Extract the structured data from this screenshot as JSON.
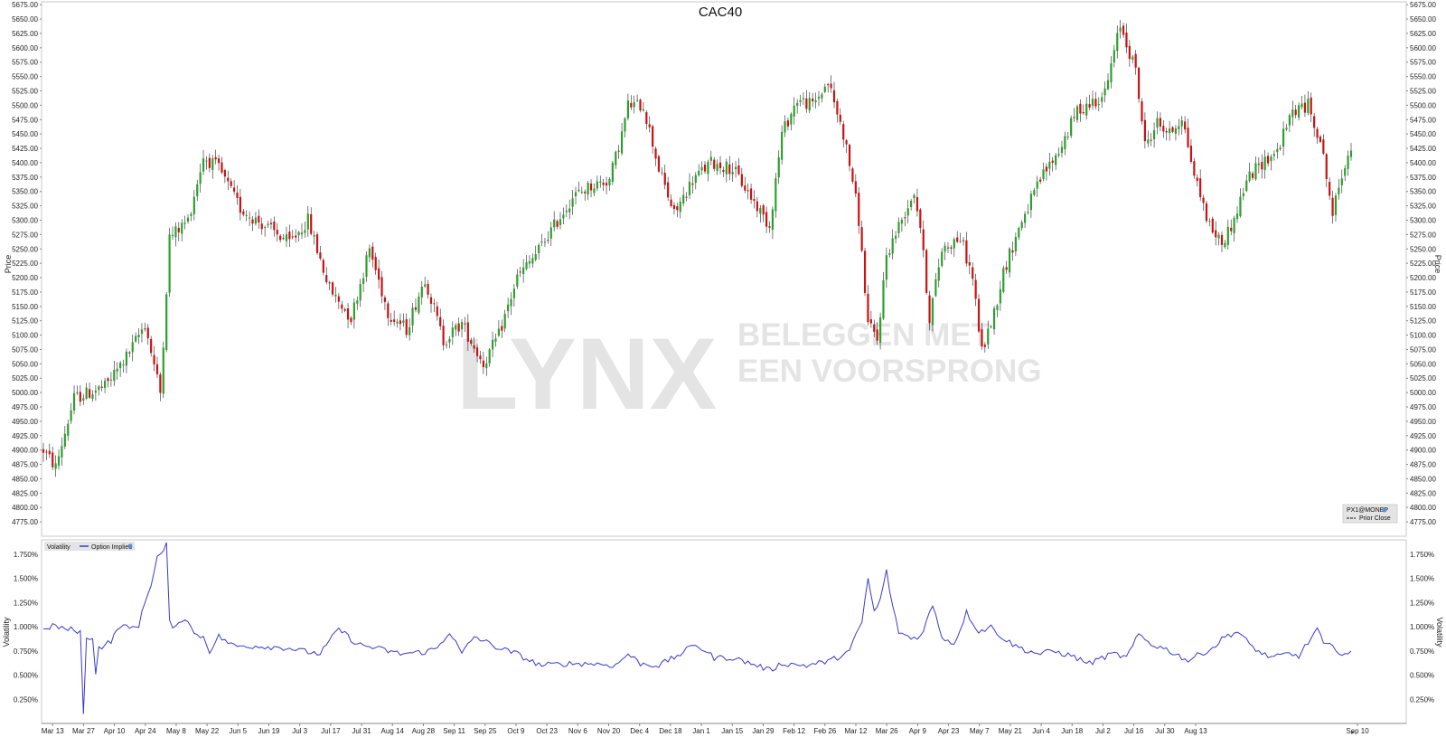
{
  "chart_data": [
    {
      "type": "candlestick",
      "title": "CAC40",
      "ylabel": "Price",
      "ylim": [
        4750,
        5680
      ],
      "y_ticks": [
        "4775.00",
        "4800.00",
        "4825.00",
        "4850.00",
        "4875.00",
        "4900.00",
        "4925.00",
        "4950.00",
        "4975.00",
        "5000.00",
        "5025.00",
        "5050.00",
        "5075.00",
        "5100.00",
        "5125.00",
        "5150.00",
        "5175.00",
        "5200.00",
        "5225.00",
        "5250.00",
        "5275.00",
        "5300.00",
        "5325.00",
        "5350.00",
        "5375.00",
        "5400.00",
        "5425.00",
        "5450.00",
        "5475.00",
        "5500.00",
        "5525.00",
        "5550.00",
        "5575.00",
        "5600.00",
        "5625.00",
        "5650.00",
        "5675.00"
      ],
      "x_ticks": [
        "Mar 13",
        "Mar 27",
        "Apr 10",
        "Apr 24",
        "May 8",
        "May 22",
        "Jun 5",
        "Jun 19",
        "Jul 3",
        "Jul 17",
        "Jul 31",
        "Aug 14",
        "Aug 28",
        "Sep 11",
        "Sep 25",
        "Oct 9",
        "Oct 23",
        "Nov 6",
        "Nov 20",
        "Dec 4",
        "Dec 18",
        "Jan 1",
        "Jan 15",
        "Jan 29",
        "Feb 12",
        "Feb 26",
        "Mar 12",
        "Mar 26",
        "Apr 9",
        "Apr 23",
        "May 7",
        "May 21",
        "Jun 4",
        "Jun 18",
        "Jul 2",
        "Jul 16",
        "Jul 30",
        "Aug 13",
        "Sep 10"
      ],
      "legend": [
        "PX1@MONEP",
        "Prior Close"
      ],
      "legend_position": "bottom-right",
      "colors": {
        "up": "#2ca02c",
        "down": "#cc1111",
        "wick": "#222222"
      },
      "trend_anchors": [
        [
          0,
          4900
        ],
        [
          4,
          4870
        ],
        [
          10,
          4990
        ],
        [
          20,
          5010
        ],
        [
          28,
          5070
        ],
        [
          33,
          5120
        ],
        [
          38,
          5000
        ],
        [
          41,
          5270
        ],
        [
          47,
          5300
        ],
        [
          52,
          5410
        ],
        [
          57,
          5390
        ],
        [
          64,
          5320
        ],
        [
          72,
          5290
        ],
        [
          80,
          5260
        ],
        [
          86,
          5300
        ],
        [
          93,
          5180
        ],
        [
          100,
          5130
        ],
        [
          106,
          5250
        ],
        [
          112,
          5140
        ],
        [
          118,
          5110
        ],
        [
          124,
          5200
        ],
        [
          130,
          5090
        ],
        [
          136,
          5120
        ],
        [
          143,
          5050
        ],
        [
          148,
          5100
        ],
        [
          154,
          5200
        ],
        [
          160,
          5240
        ],
        [
          166,
          5290
        ],
        [
          172,
          5340
        ],
        [
          178,
          5360
        ],
        [
          184,
          5370
        ],
        [
          188,
          5450
        ],
        [
          190,
          5500
        ],
        [
          195,
          5500
        ],
        [
          200,
          5390
        ],
        [
          205,
          5310
        ],
        [
          211,
          5370
        ],
        [
          217,
          5400
        ],
        [
          224,
          5390
        ],
        [
          230,
          5340
        ],
        [
          236,
          5290
        ],
        [
          240,
          5450
        ],
        [
          245,
          5510
        ],
        [
          250,
          5500
        ],
        [
          255,
          5540
        ],
        [
          260,
          5450
        ],
        [
          263,
          5370
        ],
        [
          265,
          5300
        ],
        [
          268,
          5120
        ],
        [
          271,
          5090
        ],
        [
          274,
          5240
        ],
        [
          278,
          5290
        ],
        [
          283,
          5350
        ],
        [
          285,
          5290
        ],
        [
          288,
          5130
        ],
        [
          292,
          5250
        ],
        [
          298,
          5270
        ],
        [
          302,
          5200
        ],
        [
          305,
          5070
        ],
        [
          309,
          5140
        ],
        [
          312,
          5210
        ],
        [
          318,
          5300
        ],
        [
          325,
          5380
        ],
        [
          330,
          5420
        ],
        [
          336,
          5490
        ],
        [
          345,
          5520
        ],
        [
          350,
          5640
        ],
        [
          355,
          5560
        ],
        [
          358,
          5430
        ],
        [
          362,
          5470
        ],
        [
          366,
          5450
        ],
        [
          370,
          5480
        ],
        [
          374,
          5380
        ],
        [
          379,
          5290
        ],
        [
          383,
          5260
        ],
        [
          387,
          5300
        ],
        [
          391,
          5370
        ],
        [
          396,
          5400
        ],
        [
          401,
          5420
        ],
        [
          406,
          5490
        ],
        [
          411,
          5500
        ],
        [
          415,
          5440
        ],
        [
          419,
          5310
        ],
        [
          423,
          5400
        ],
        [
          425,
          5430
        ]
      ]
    },
    {
      "type": "line",
      "legend_title": "Volatility",
      "series": [
        {
          "name": "Option Implied",
          "color": "#3a3acc"
        }
      ],
      "ylabel": "Volatility",
      "ylim": [
        0.0,
        1.9
      ],
      "y_ticks": [
        "0.250%",
        "0.500%",
        "0.750%",
        "1.000%",
        "1.250%",
        "1.500%",
        "1.750%"
      ],
      "values": [
        [
          0,
          0.95
        ],
        [
          3,
          1.02
        ],
        [
          6,
          0.98
        ],
        [
          10,
          0.97
        ],
        [
          12,
          0.95
        ],
        [
          13,
          0.08
        ],
        [
          14,
          0.88
        ],
        [
          16,
          0.9
        ],
        [
          17,
          0.52
        ],
        [
          18,
          0.78
        ],
        [
          22,
          0.85
        ],
        [
          25,
          1.02
        ],
        [
          28,
          0.98
        ],
        [
          31,
          1.02
        ],
        [
          33,
          1.25
        ],
        [
          35,
          1.45
        ],
        [
          37,
          1.72
        ],
        [
          39,
          1.78
        ],
        [
          40,
          1.85
        ],
        [
          41,
          1.05
        ],
        [
          43,
          0.98
        ],
        [
          45,
          1.08
        ],
        [
          47,
          1.08
        ],
        [
          49,
          0.92
        ],
        [
          52,
          0.9
        ],
        [
          54,
          0.75
        ],
        [
          57,
          0.9
        ],
        [
          62,
          0.8
        ],
        [
          70,
          0.8
        ],
        [
          80,
          0.78
        ],
        [
          84,
          0.75
        ],
        [
          90,
          0.72
        ],
        [
          96,
          0.98
        ],
        [
          102,
          0.82
        ],
        [
          108,
          0.78
        ],
        [
          116,
          0.72
        ],
        [
          124,
          0.74
        ],
        [
          128,
          0.78
        ],
        [
          132,
          0.95
        ],
        [
          136,
          0.72
        ],
        [
          140,
          0.9
        ],
        [
          148,
          0.78
        ],
        [
          154,
          0.72
        ],
        [
          158,
          0.65
        ],
        [
          162,
          0.6
        ],
        [
          170,
          0.62
        ],
        [
          178,
          0.62
        ],
        [
          186,
          0.6
        ],
        [
          190,
          0.72
        ],
        [
          194,
          0.62
        ],
        [
          200,
          0.6
        ],
        [
          206,
          0.7
        ],
        [
          212,
          0.82
        ],
        [
          218,
          0.68
        ],
        [
          224,
          0.68
        ],
        [
          232,
          0.6
        ],
        [
          236,
          0.55
        ],
        [
          240,
          0.62
        ],
        [
          248,
          0.6
        ],
        [
          256,
          0.65
        ],
        [
          262,
          0.75
        ],
        [
          266,
          1.05
        ],
        [
          268,
          1.5
        ],
        [
          270,
          1.15
        ],
        [
          272,
          1.28
        ],
        [
          274,
          1.58
        ],
        [
          276,
          1.2
        ],
        [
          278,
          0.95
        ],
        [
          282,
          0.88
        ],
        [
          285,
          0.9
        ],
        [
          289,
          1.22
        ],
        [
          292,
          0.9
        ],
        [
          296,
          0.82
        ],
        [
          300,
          1.15
        ],
        [
          304,
          0.95
        ],
        [
          308,
          1.0
        ],
        [
          312,
          0.88
        ],
        [
          316,
          0.8
        ],
        [
          320,
          0.75
        ],
        [
          324,
          0.72
        ],
        [
          328,
          0.75
        ],
        [
          334,
          0.7
        ],
        [
          340,
          0.62
        ],
        [
          344,
          0.68
        ],
        [
          348,
          0.72
        ],
        [
          352,
          0.68
        ],
        [
          356,
          0.92
        ],
        [
          360,
          0.82
        ],
        [
          364,
          0.78
        ],
        [
          368,
          0.72
        ],
        [
          372,
          0.65
        ],
        [
          376,
          0.72
        ],
        [
          380,
          0.78
        ],
        [
          384,
          0.9
        ],
        [
          388,
          0.95
        ],
        [
          392,
          0.82
        ],
        [
          396,
          0.72
        ],
        [
          400,
          0.68
        ],
        [
          404,
          0.72
        ],
        [
          408,
          0.7
        ],
        [
          412,
          0.88
        ],
        [
          414,
          0.98
        ],
        [
          416,
          0.82
        ],
        [
          420,
          0.78
        ],
        [
          422,
          0.72
        ],
        [
          425,
          0.72
        ]
      ]
    }
  ],
  "watermark": {
    "brand": "LYNX",
    "tagline_line1": "BELEGGEN MET",
    "tagline_line2": "EEN VOORSPRONG"
  }
}
